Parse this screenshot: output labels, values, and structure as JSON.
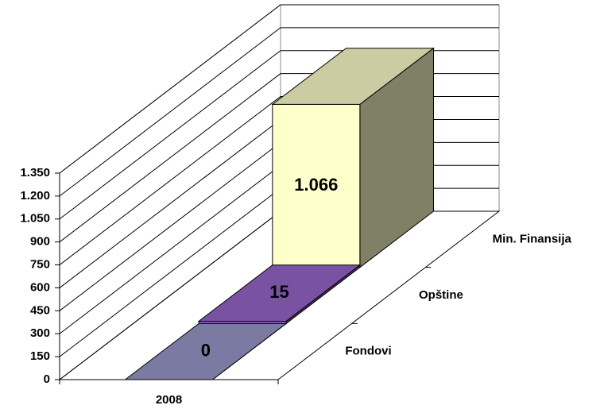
{
  "chart_data": {
    "type": "bar3d",
    "categories": [
      "2008"
    ],
    "series": [
      {
        "name": "Fondovi",
        "color": "#9999cc",
        "values": [
          0
        ],
        "value_labels": [
          "0"
        ]
      },
      {
        "name": "Opštine",
        "color": "#9966cc",
        "values": [
          15
        ],
        "value_labels": [
          "15"
        ]
      },
      {
        "name": "Min. Finansija",
        "color": "#ffffcc",
        "values": [
          1066
        ],
        "value_labels": [
          "1.066"
        ]
      }
    ],
    "ylim": [
      0,
      1350
    ],
    "yticks": [
      0,
      150,
      300,
      450,
      600,
      750,
      900,
      {
        "value": 1050,
        "label": "1.050"
      },
      {
        "value": 1200,
        "label": "1.200"
      },
      {
        "value": 1350,
        "label": "1.350"
      }
    ],
    "grid": true
  }
}
